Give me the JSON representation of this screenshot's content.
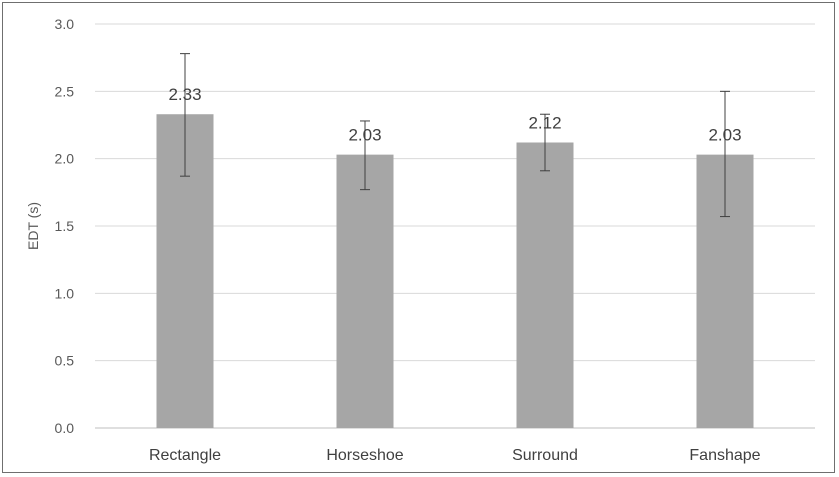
{
  "chart_data": {
    "type": "bar",
    "title": "",
    "xlabel": "",
    "ylabel": "EDT (s)",
    "ylim": [
      0,
      3.0
    ],
    "yticks": [
      0.0,
      0.5,
      1.0,
      1.5,
      2.0,
      2.5,
      3.0
    ],
    "yticks_text": [
      "0.0",
      "0.5",
      "1.0",
      "1.5",
      "2.0",
      "2.5",
      "3.0"
    ],
    "categories": [
      "Rectangle",
      "Horseshoe",
      "Surround",
      "Fanshape"
    ],
    "values": [
      2.33,
      2.03,
      2.12,
      2.03
    ],
    "value_labels": [
      "2.33",
      "2.03",
      "2.12",
      "2.03"
    ],
    "error_low": [
      1.87,
      1.77,
      1.91,
      1.57
    ],
    "error_high": [
      2.78,
      2.28,
      2.33,
      2.5
    ],
    "grid": true,
    "legend": "none",
    "colors": {
      "bar": "#a6a6a6",
      "grid": "#d9d9d9",
      "error_bar": "#404040",
      "axis": "#bfbfbf"
    }
  }
}
